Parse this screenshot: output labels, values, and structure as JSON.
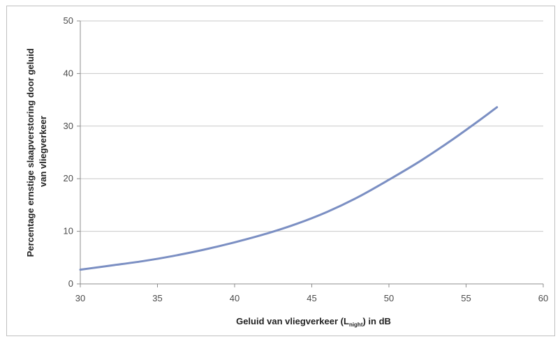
{
  "chart_data": {
    "type": "line",
    "title": "",
    "xlabel_parts": {
      "before": "Geluid van vliegverkeer (L",
      "sub": "night",
      "after": ") in dB"
    },
    "ylabel_lines": [
      "Percentage ernstige slaapverstoring door geluid",
      "van vliegverkeer"
    ],
    "xlim": [
      30,
      60
    ],
    "ylim": [
      0,
      50
    ],
    "xticks": [
      30,
      35,
      40,
      45,
      50,
      55,
      60
    ],
    "yticks": [
      0,
      10,
      20,
      30,
      40,
      50
    ],
    "grid": {
      "horizontal": true,
      "vertical": false
    },
    "legend": "none",
    "series": [
      {
        "color": "#7b8fc3",
        "x": [
          30,
          32,
          34,
          36,
          38,
          40,
          42,
          44,
          46,
          48,
          50,
          52,
          54,
          56,
          57
        ],
        "y": [
          2.7,
          3.5,
          4.3,
          5.3,
          6.5,
          7.9,
          9.5,
          11.4,
          13.7,
          16.5,
          19.8,
          23.3,
          27.2,
          31.4,
          33.6
        ]
      }
    ]
  }
}
